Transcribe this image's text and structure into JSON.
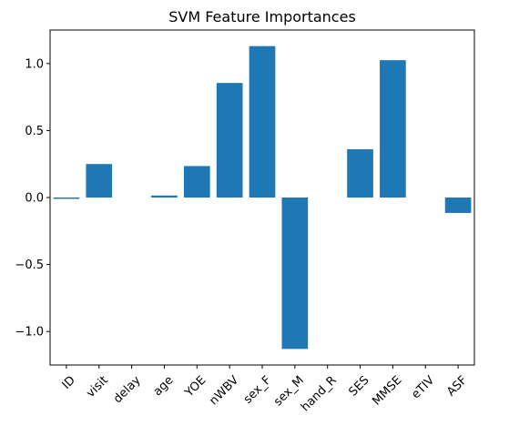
{
  "chart_data": {
    "type": "bar",
    "title": "SVM Feature Importances",
    "xlabel": "",
    "ylabel": "",
    "categories": [
      "ID",
      "visit",
      "delay",
      "age",
      "YOE",
      "nWBV",
      "sex_F",
      "sex_M",
      "hand_R",
      "SES",
      "MMSE",
      "eTIV",
      "ASF"
    ],
    "values": [
      -0.01,
      0.25,
      0.0,
      0.015,
      0.235,
      0.855,
      1.13,
      -1.13,
      0.0,
      0.36,
      1.025,
      0.0,
      -0.115
    ],
    "ylim": [
      -1.25,
      1.25
    ],
    "yticks": [
      -1.0,
      -0.5,
      0.0,
      0.5,
      1.0
    ],
    "ytick_labels": [
      "−1.0",
      "−0.5",
      "0.0",
      "0.5",
      "1.0"
    ],
    "grid": false,
    "bar_color": "#1f77b4"
  }
}
